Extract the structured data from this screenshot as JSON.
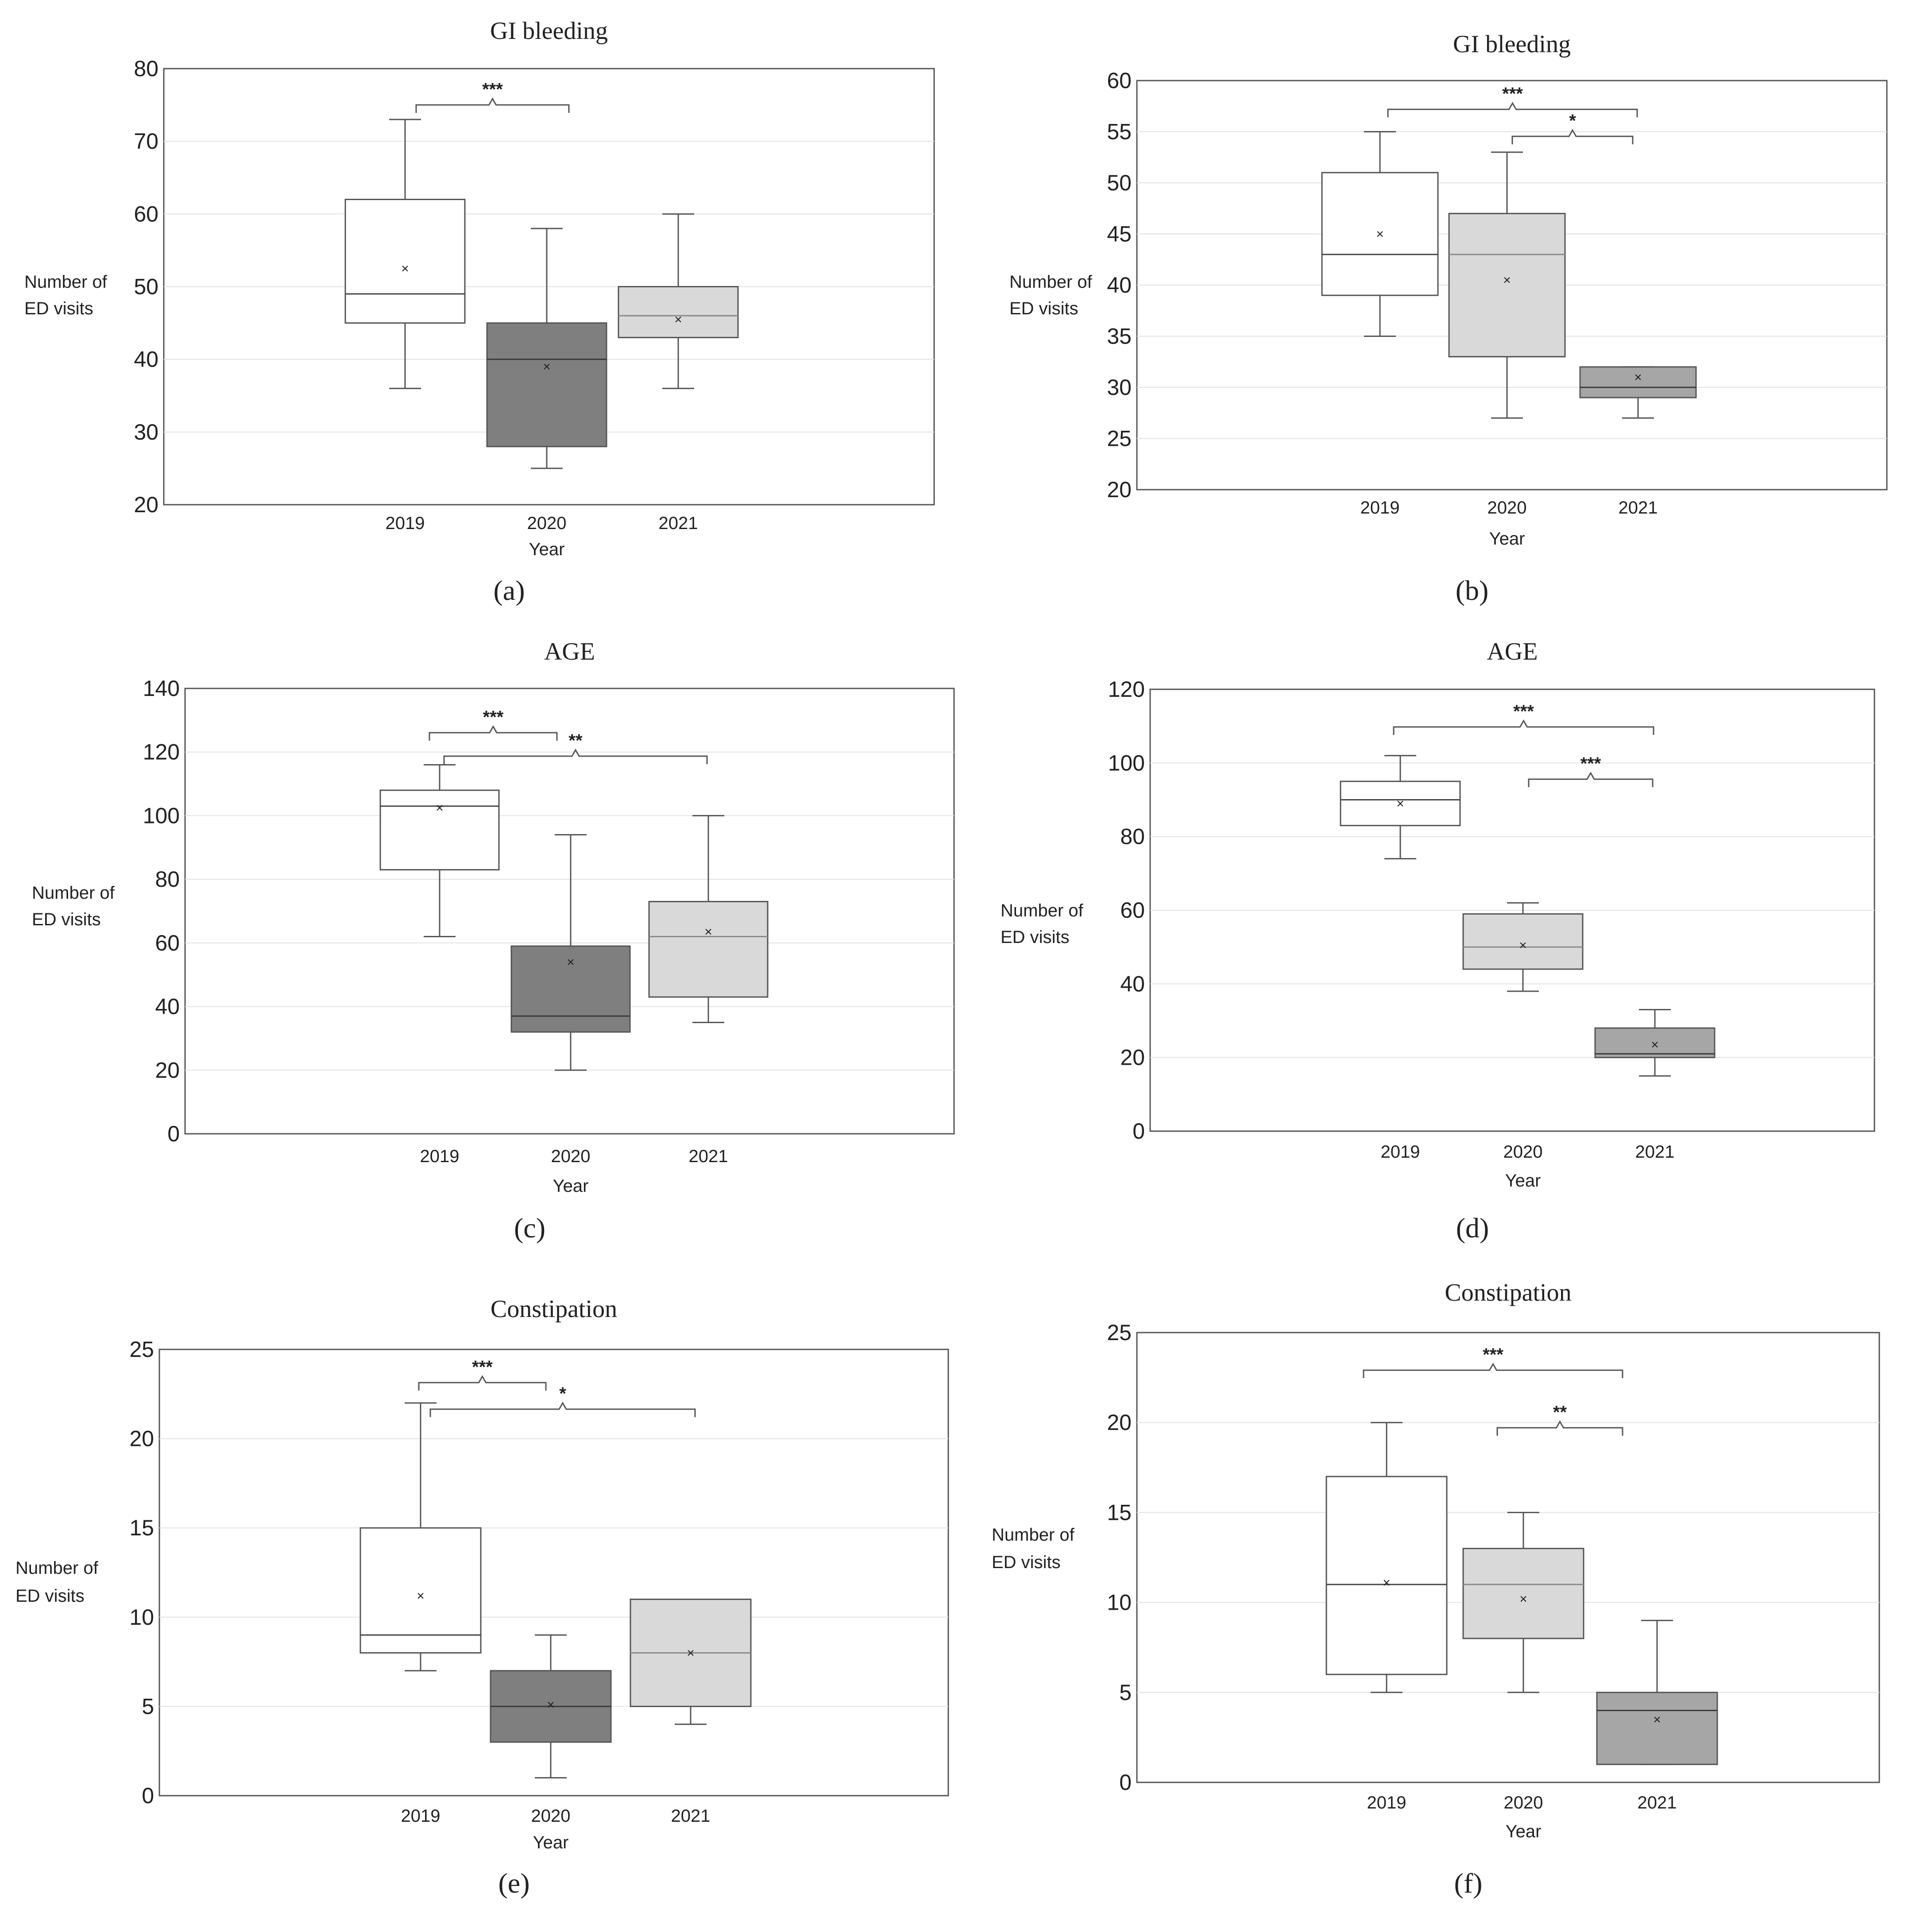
{
  "chart_data": [
    {
      "panel": "a",
      "caption": "(a)",
      "type": "box",
      "title": "GI bleeding",
      "ylabel_lines": [
        "Number of",
        "ED visits"
      ],
      "xlabel": "Year",
      "categories": [
        "2019",
        "2020",
        "2021"
      ],
      "ylim": [
        20,
        80
      ],
      "yticks": [
        20,
        30,
        40,
        50,
        60,
        70,
        80
      ],
      "boxes": [
        {
          "category": "2019",
          "min": 36,
          "q1": 45,
          "median": 49,
          "q3": 62,
          "max": 73,
          "mean": 52.5,
          "fill": "#ffffff"
        },
        {
          "category": "2020",
          "min": 25,
          "q1": 28,
          "median": 40,
          "q3": 45,
          "max": 58,
          "mean": 39,
          "fill": "#7f7f7f"
        },
        {
          "category": "2021",
          "min": 36,
          "q1": 43,
          "median": 46,
          "q3": 50,
          "max": 60,
          "mean": 45.5,
          "fill": "#d9d9d9"
        }
      ],
      "significance": [
        {
          "from": "2019",
          "to": "2020",
          "label": "***"
        }
      ]
    },
    {
      "panel": "b",
      "caption": "(b)",
      "type": "box",
      "title": "GI bleeding",
      "ylabel_lines": [
        "Number of",
        "ED visits"
      ],
      "xlabel": "Year",
      "categories": [
        "2019",
        "2020",
        "2021"
      ],
      "ylim": [
        20,
        60
      ],
      "yticks": [
        20,
        25,
        30,
        35,
        40,
        45,
        50,
        55,
        60
      ],
      "boxes": [
        {
          "category": "2019",
          "min": 35,
          "q1": 39,
          "median": 43,
          "q3": 51,
          "max": 55,
          "mean": 45,
          "fill": "#ffffff"
        },
        {
          "category": "2020",
          "min": 27,
          "q1": 33,
          "median": 43,
          "q3": 47,
          "max": 53,
          "mean": 40.5,
          "fill": "#d9d9d9"
        },
        {
          "category": "2021",
          "min": 27,
          "q1": 29,
          "median": 30,
          "q3": 32,
          "max": 32,
          "mean": 31,
          "fill": "#a6a6a6"
        }
      ],
      "significance": [
        {
          "from": "2019",
          "to": "2021",
          "label": "***"
        },
        {
          "from": "2020",
          "to": "2021",
          "label": "*"
        }
      ]
    },
    {
      "panel": "c",
      "caption": "(c)",
      "type": "box",
      "title": "AGE",
      "ylabel_lines": [
        "Number of",
        "ED visits"
      ],
      "xlabel": "Year",
      "categories": [
        "2019",
        "2020",
        "2021"
      ],
      "ylim": [
        0,
        140
      ],
      "yticks": [
        0,
        20,
        40,
        60,
        80,
        100,
        120,
        140
      ],
      "boxes": [
        {
          "category": "2019",
          "min": 62,
          "q1": 83,
          "median": 103,
          "q3": 108,
          "max": 116,
          "mean": 102.5,
          "fill": "#ffffff"
        },
        {
          "category": "2020",
          "min": 20,
          "q1": 32,
          "median": 37,
          "q3": 59,
          "max": 94,
          "mean": 54,
          "fill": "#7f7f7f"
        },
        {
          "category": "2021",
          "min": 35,
          "q1": 43,
          "median": 62,
          "q3": 73,
          "max": 100,
          "mean": 63.5,
          "fill": "#d9d9d9"
        }
      ],
      "significance": [
        {
          "from": "2019",
          "to": "2020",
          "label": "***"
        },
        {
          "from": "2019",
          "to": "2021",
          "label": "**"
        }
      ]
    },
    {
      "panel": "d",
      "caption": "(d)",
      "type": "box",
      "title": "AGE",
      "ylabel_lines": [
        "Number of",
        "ED visits"
      ],
      "xlabel": "Year",
      "categories": [
        "2019",
        "2020",
        "2021"
      ],
      "ylim": [
        0,
        120
      ],
      "yticks": [
        0,
        20,
        40,
        60,
        80,
        100,
        120
      ],
      "boxes": [
        {
          "category": "2019",
          "min": 74,
          "q1": 83,
          "median": 90,
          "q3": 95,
          "max": 102,
          "mean": 89,
          "fill": "#ffffff"
        },
        {
          "category": "2020",
          "min": 38,
          "q1": 44,
          "median": 50,
          "q3": 59,
          "max": 62,
          "mean": 50.5,
          "fill": "#d9d9d9"
        },
        {
          "category": "2021",
          "min": 15,
          "q1": 20,
          "median": 21,
          "q3": 28,
          "max": 33,
          "mean": 23.5,
          "fill": "#a6a6a6"
        }
      ],
      "significance": [
        {
          "from": "2019",
          "to": "2021",
          "label": "***"
        },
        {
          "from": "2020",
          "to": "2021",
          "label": "***"
        }
      ]
    },
    {
      "panel": "e",
      "caption": "(e)",
      "type": "box",
      "title": "Constipation",
      "ylabel_lines": [
        "Number of",
        "ED visits"
      ],
      "xlabel": "Year",
      "categories": [
        "2019",
        "2020",
        "2021"
      ],
      "ylim": [
        0,
        25
      ],
      "yticks": [
        0,
        5,
        10,
        15,
        20,
        25
      ],
      "boxes": [
        {
          "category": "2019",
          "min": 7,
          "q1": 8,
          "median": 9,
          "q3": 15,
          "max": 22,
          "mean": 11.2,
          "fill": "#ffffff"
        },
        {
          "category": "2020",
          "min": 1,
          "q1": 3,
          "median": 5,
          "q3": 7,
          "max": 9,
          "mean": 5.1,
          "fill": "#7f7f7f"
        },
        {
          "category": "2021",
          "min": 4,
          "q1": 5,
          "median": 8,
          "q3": 11,
          "max": 11,
          "mean": 8,
          "fill": "#d9d9d9"
        }
      ],
      "significance": [
        {
          "from": "2019",
          "to": "2020",
          "label": "***"
        },
        {
          "from": "2019",
          "to": "2021",
          "label": "*"
        }
      ]
    },
    {
      "panel": "f",
      "caption": "(f)",
      "type": "box",
      "title": "Constipation",
      "ylabel_lines": [
        "Number of",
        "ED visits"
      ],
      "xlabel": "Year",
      "categories": [
        "2019",
        "2020",
        "2021"
      ],
      "ylim": [
        0,
        25
      ],
      "yticks": [
        0,
        5,
        10,
        15,
        20,
        25
      ],
      "boxes": [
        {
          "category": "2019",
          "min": 5,
          "q1": 6,
          "median": 11,
          "q3": 17,
          "max": 20,
          "mean": 11.1,
          "fill": "#ffffff"
        },
        {
          "category": "2020",
          "min": 5,
          "q1": 8,
          "median": 11,
          "q3": 13,
          "max": 15,
          "mean": 10.2,
          "fill": "#d9d9d9"
        },
        {
          "category": "2021",
          "min": 1,
          "q1": 1,
          "median": 4,
          "q3": 5,
          "max": 9,
          "mean": 3.5,
          "fill": "#a6a6a6"
        }
      ],
      "significance": [
        {
          "from": "2019",
          "to": "2021",
          "label": "***"
        },
        {
          "from": "2020",
          "to": "2021",
          "label": "**"
        }
      ]
    }
  ]
}
